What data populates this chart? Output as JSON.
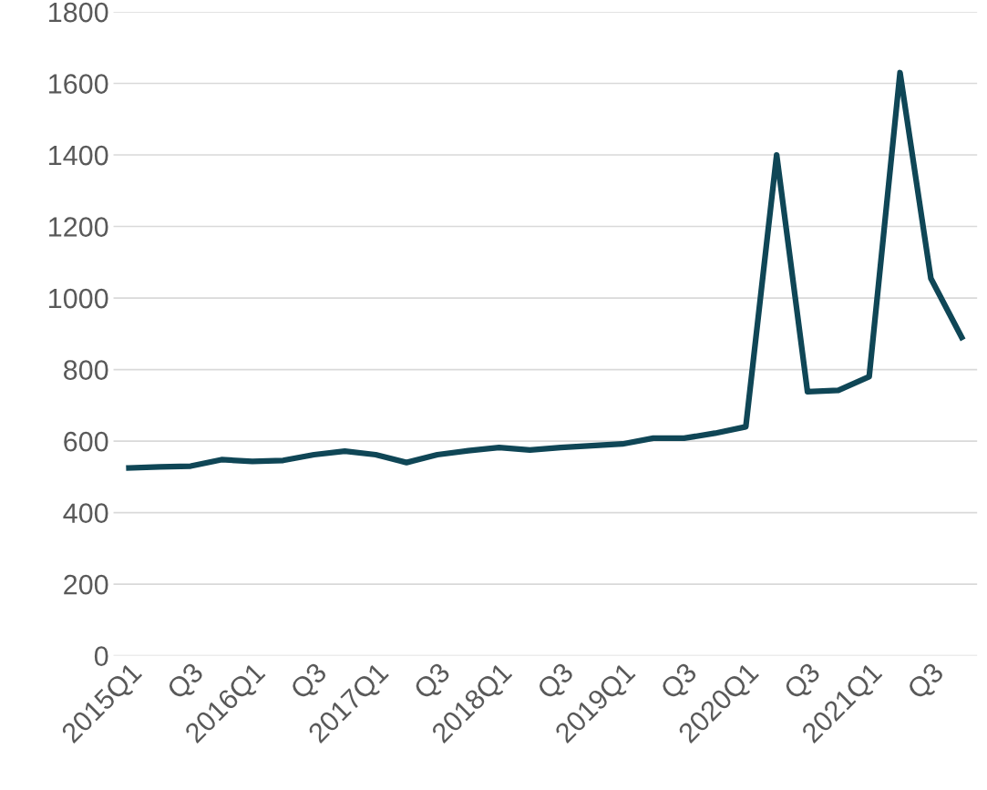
{
  "chart_data": {
    "type": "line",
    "categories": [
      "2015Q1",
      null,
      "Q3",
      null,
      "2016Q1",
      null,
      "Q3",
      null,
      "2017Q1",
      null,
      "Q3",
      null,
      "2018Q1",
      null,
      "Q3",
      null,
      "2019Q1",
      null,
      "Q3",
      null,
      "2020Q1",
      null,
      "Q3",
      null,
      "2021Q1",
      null,
      "Q3",
      null
    ],
    "series": [
      {
        "color": "#0f4656",
        "values": [
          525,
          528,
          530,
          548,
          543,
          546,
          562,
          572,
          562,
          540,
          562,
          573,
          582,
          575,
          582,
          587,
          592,
          608,
          608,
          622,
          640,
          1400,
          738,
          742,
          780,
          1630,
          1055,
          890
        ]
      }
    ],
    "ylim": [
      0,
      1800
    ],
    "yticks": [
      0,
      200,
      400,
      600,
      800,
      1000,
      1200,
      1400,
      1600,
      1800
    ],
    "grid": "y",
    "legend": false,
    "marker": "none",
    "line_style": "solid"
  }
}
